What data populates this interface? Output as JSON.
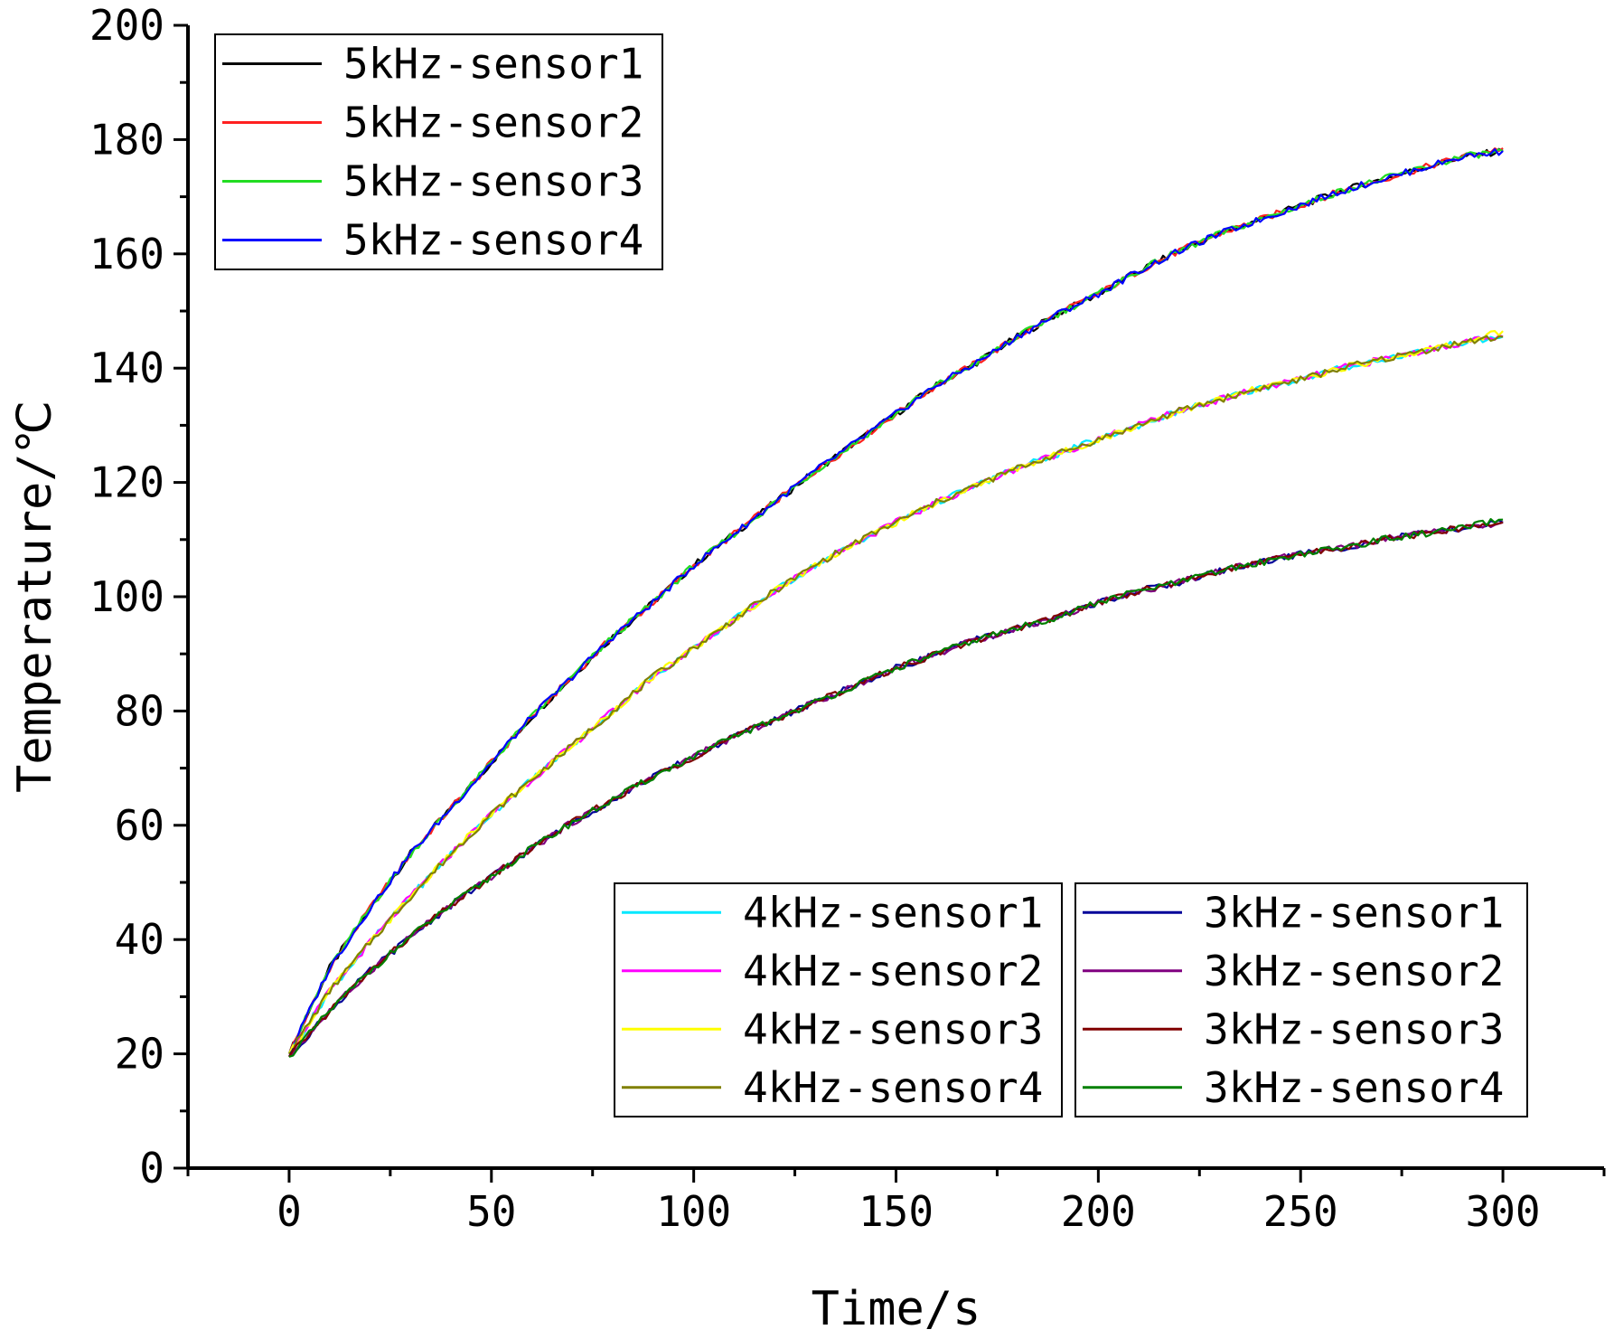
{
  "chart_data": {
    "type": "line",
    "title": "",
    "xlabel": "Time/s",
    "ylabel": "Temperature/℃",
    "xlim": [
      -25,
      325
    ],
    "ylim": [
      0,
      200
    ],
    "x_ticks": [
      0,
      50,
      100,
      150,
      200,
      250,
      300
    ],
    "y_ticks": [
      0,
      20,
      40,
      60,
      80,
      100,
      120,
      140,
      160,
      180,
      200
    ],
    "grid": false,
    "x": [
      0,
      10,
      20,
      30,
      40,
      50,
      60,
      70,
      80,
      90,
      100,
      110,
      120,
      130,
      140,
      150,
      160,
      170,
      180,
      190,
      200,
      210,
      220,
      230,
      240,
      250,
      260,
      270,
      280,
      290,
      300
    ],
    "series": [
      {
        "name": "5kHz-sensor1",
        "color": "#000000",
        "values": [
          20,
          35,
          45.5,
          55,
          63,
          71,
          79,
          86,
          93,
          99,
          105.5,
          111,
          116.5,
          122,
          127,
          132,
          137,
          141,
          145.5,
          149.5,
          153,
          157,
          160.5,
          163.5,
          166,
          168.5,
          171,
          173,
          175,
          177,
          178
        ]
      },
      {
        "name": "5kHz-sensor2",
        "color": "#ff2020",
        "values": [
          20,
          35,
          45.5,
          55,
          63,
          71,
          79,
          86,
          93,
          99,
          105.5,
          111,
          116.5,
          122,
          127,
          132,
          137,
          141,
          145.5,
          149.5,
          153,
          157,
          160.5,
          163.5,
          166,
          168.5,
          171,
          173,
          175,
          177,
          178.5
        ]
      },
      {
        "name": "5kHz-sensor3",
        "color": "#22dd22",
        "values": [
          20,
          35,
          45.5,
          55,
          63,
          71,
          79,
          86,
          93,
          99,
          105.5,
          111,
          116.5,
          122,
          127,
          132,
          137,
          141,
          145.5,
          149.5,
          153,
          157,
          160.5,
          163.5,
          166,
          168.5,
          171,
          173,
          175,
          177,
          178
        ]
      },
      {
        "name": "5kHz-sensor4",
        "color": "#0000ff",
        "values": [
          20,
          35,
          45.5,
          55,
          63,
          71,
          79,
          86,
          93,
          99,
          105.5,
          111,
          116.5,
          122,
          127,
          132,
          137,
          141,
          145.5,
          149.5,
          153,
          157,
          160.5,
          163.5,
          166,
          168.5,
          171,
          173,
          175,
          177,
          178
        ]
      },
      {
        "name": "4kHz-sensor1",
        "color": "#00e8ff",
        "values": [
          20,
          31,
          39.5,
          47.5,
          55,
          62,
          68,
          74,
          80,
          86,
          91,
          96,
          101,
          105.5,
          109.5,
          113,
          116.5,
          119.5,
          122.5,
          125,
          127.5,
          130,
          132.5,
          134.5,
          136.5,
          138,
          140,
          141.5,
          143,
          144.5,
          145.5
        ]
      },
      {
        "name": "4kHz-sensor2",
        "color": "#ff00ff",
        "values": [
          20,
          31,
          39.5,
          47.5,
          55,
          62,
          68,
          74,
          80,
          86,
          91,
          96,
          101,
          105.5,
          109.5,
          113,
          116.5,
          119.5,
          122.5,
          125,
          127.5,
          130,
          132.5,
          134.5,
          136.5,
          138,
          140,
          141.5,
          143,
          144.5,
          145.5
        ]
      },
      {
        "name": "4kHz-sensor3",
        "color": "#ffff00",
        "values": [
          20,
          31,
          39.5,
          47.5,
          55,
          62,
          68,
          74,
          80,
          86,
          91,
          96,
          101,
          105.5,
          109.5,
          113,
          116.5,
          119.5,
          122.5,
          125,
          127.5,
          130,
          132.5,
          134.5,
          136.5,
          138,
          140,
          141.5,
          143,
          144.5,
          146.5
        ]
      },
      {
        "name": "4kHz-sensor4",
        "color": "#808000",
        "values": [
          20,
          31,
          39.5,
          47.5,
          55,
          62,
          68,
          74,
          80,
          86,
          91,
          96,
          101,
          105.5,
          109.5,
          113,
          116.5,
          119.5,
          122.5,
          125,
          127.5,
          130,
          132.5,
          134.5,
          136.5,
          138,
          140,
          141.5,
          143,
          144.5,
          145.5
        ]
      },
      {
        "name": "3kHz-sensor1",
        "color": "#000099",
        "values": [
          19.5,
          27.5,
          34.5,
          40.5,
          46,
          51,
          56,
          60.5,
          64.5,
          68.5,
          72,
          75.5,
          78.5,
          81.5,
          84.5,
          87.5,
          90,
          92.5,
          94.5,
          96.5,
          99,
          101,
          102.5,
          104.5,
          106,
          107.5,
          108.5,
          110,
          111,
          112,
          113
        ]
      },
      {
        "name": "3kHz-sensor2",
        "color": "#800080",
        "values": [
          19.5,
          27.5,
          34.5,
          40.5,
          46,
          51,
          56,
          60.5,
          64.5,
          68.5,
          72,
          75.5,
          78.5,
          81.5,
          84.5,
          87.5,
          90,
          92.5,
          94.5,
          96.5,
          99,
          101,
          102.5,
          104.5,
          106,
          107.5,
          108.5,
          110,
          111,
          112,
          113
        ]
      },
      {
        "name": "3kHz-sensor3",
        "color": "#800000",
        "values": [
          19.5,
          27.5,
          34.5,
          40.5,
          46,
          51,
          56,
          60.5,
          64.5,
          68.5,
          72,
          75.5,
          78.5,
          81.5,
          84.5,
          87.5,
          90,
          92.5,
          94.5,
          96.5,
          99,
          101,
          102.5,
          104.5,
          106,
          107.5,
          108.5,
          110,
          111,
          112,
          113
        ]
      },
      {
        "name": "3kHz-sensor4",
        "color": "#008000",
        "values": [
          19.5,
          27.5,
          34.5,
          40.5,
          46,
          51,
          56,
          60.5,
          64.5,
          68.5,
          72,
          75.5,
          78.5,
          81.5,
          84.5,
          87.5,
          90,
          92.5,
          94.5,
          96.5,
          99,
          101,
          102.5,
          104.5,
          106,
          107.5,
          108.5,
          110,
          111,
          112,
          113.5
        ]
      }
    ],
    "legends": [
      {
        "placement": "top-left",
        "entries": [
          "5kHz-sensor1",
          "5kHz-sensor2",
          "5kHz-sensor3",
          "5kHz-sensor4"
        ]
      },
      {
        "placement": "bottom-center",
        "entries": [
          "4kHz-sensor1",
          "4kHz-sensor2",
          "4kHz-sensor3",
          "4kHz-sensor4"
        ]
      },
      {
        "placement": "bottom-right",
        "entries": [
          "3kHz-sensor1",
          "3kHz-sensor2",
          "3kHz-sensor3",
          "3kHz-sensor4"
        ]
      }
    ]
  }
}
